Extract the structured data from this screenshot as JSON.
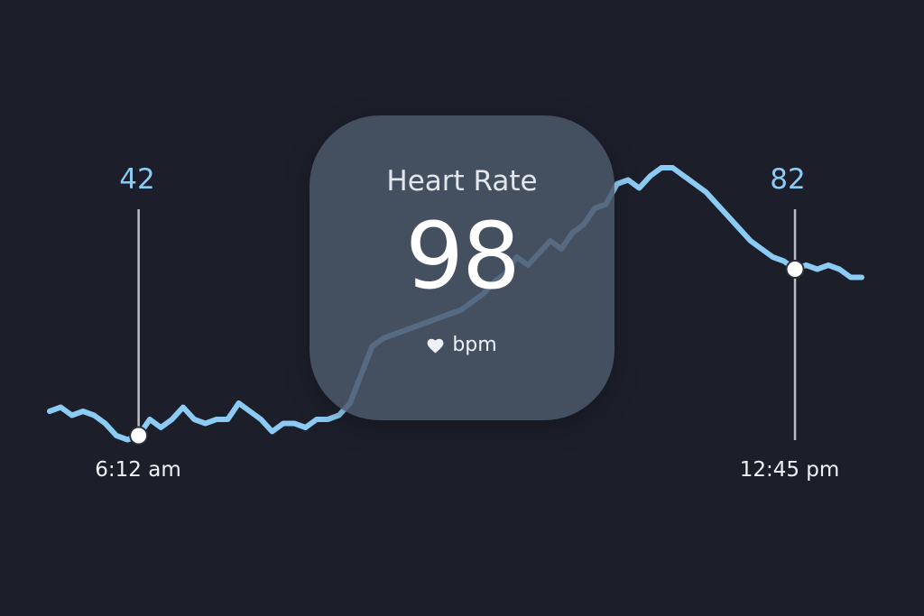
{
  "colors": {
    "background": "#1c1f2a",
    "line": "#8ccbf4",
    "card": "#4c586b",
    "marker_line": "#b9bec8",
    "marker_dot": "#ffffff"
  },
  "card": {
    "title": "Heart Rate",
    "value": "98",
    "unit": "bpm",
    "icon": "heart-icon"
  },
  "markers": [
    {
      "value": "42",
      "time": "6:12 am"
    },
    {
      "value": "82",
      "time": "12:45 pm"
    }
  ],
  "chart_data": {
    "type": "line",
    "series": [
      {
        "values": [
          46,
          47,
          45,
          46,
          45,
          43,
          40,
          39,
          40,
          44,
          42,
          44,
          47,
          44,
          43,
          44,
          44,
          48,
          46,
          44,
          41,
          43,
          43,
          42,
          44,
          44,
          45,
          48,
          55,
          62,
          64,
          65,
          66,
          67,
          68,
          69,
          70,
          71,
          73,
          75,
          78,
          80,
          84,
          82,
          85,
          88,
          86,
          90,
          92,
          96,
          97,
          102,
          103,
          101,
          104,
          106,
          106,
          104,
          102,
          100,
          97,
          94,
          91,
          88,
          86,
          84,
          83,
          81,
          82,
          81,
          82,
          81,
          79,
          79
        ]
      }
    ]
  }
}
